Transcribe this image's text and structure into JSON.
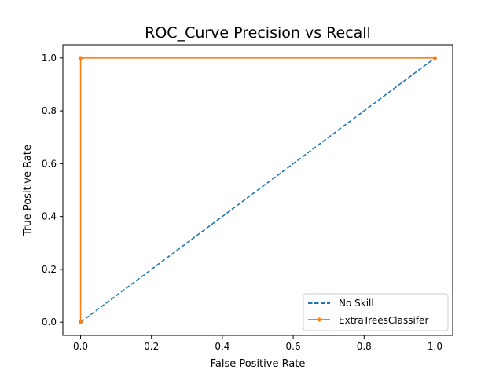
{
  "colors": {
    "no_skill": "#1f77b4",
    "classifier": "#ff7f0e",
    "axes": "#000000",
    "legend_border": "#cccccc"
  },
  "chart_data": {
    "type": "line",
    "title": "ROC_Curve Precision vs Recall",
    "xlabel": "False Positive Rate",
    "ylabel": "True Positive Rate",
    "xlim": [
      -0.05,
      1.05
    ],
    "ylim": [
      -0.05,
      1.05
    ],
    "xticks": [
      "0.0",
      "0.2",
      "0.4",
      "0.6",
      "0.8",
      "1.0"
    ],
    "yticks": [
      "0.0",
      "0.2",
      "0.4",
      "0.6",
      "0.8",
      "1.0"
    ],
    "grid": false,
    "legend_position": "lower-right",
    "series": [
      {
        "name": "No Skill",
        "style": "dashed",
        "marker": "none",
        "color": "#1f77b4",
        "x": [
          0,
          1
        ],
        "y": [
          0,
          1
        ]
      },
      {
        "name": "ExtraTreesClassifer",
        "style": "solid",
        "marker": "dot",
        "color": "#ff7f0e",
        "x": [
          0,
          0,
          1
        ],
        "y": [
          0,
          1,
          1
        ]
      }
    ]
  }
}
